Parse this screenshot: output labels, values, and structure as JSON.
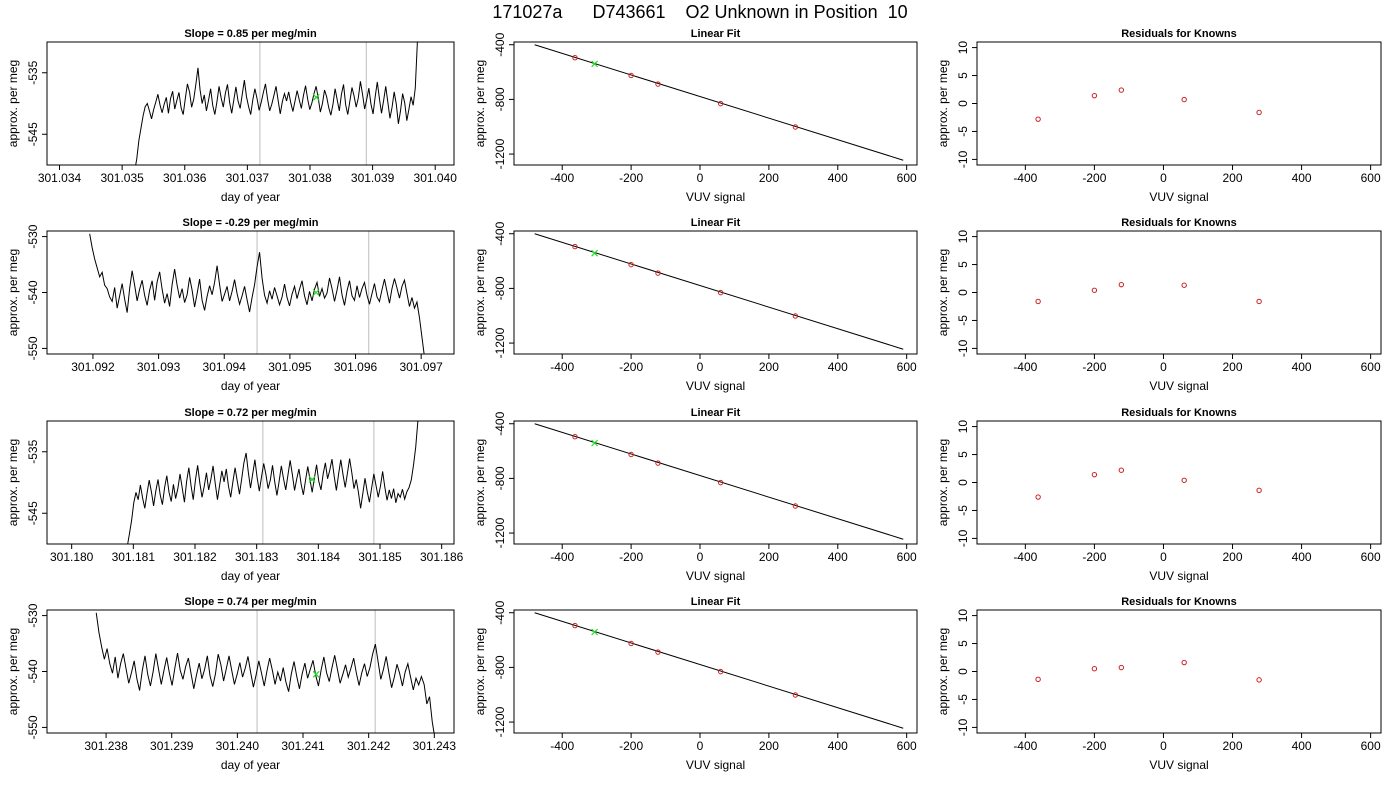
{
  "title": "171027a      D743661    O2 Unknown in Position  10",
  "chart_data": [
    {
      "type": "line",
      "title": "Slope =  0.85  per meg/min",
      "xlabel": "day of year",
      "ylabel": "approx. per meg",
      "xlim": [
        301.0338,
        301.0403
      ],
      "ylim": [
        -550,
        -530
      ],
      "xticks": [
        "301.034",
        "301.035",
        "301.036",
        "301.037",
        "301.038",
        "301.039",
        "301.040"
      ],
      "yticks": [
        "-535",
        "-545"
      ],
      "ytick_values": [
        -535,
        -545
      ],
      "vlines": [
        301.0372,
        301.0389
      ],
      "marker": [
        301.0381,
        -539
      ],
      "series_x_start": 301.0352,
      "series_x_end": 301.03985,
      "series_values": [
        -551,
        -549,
        -546,
        -544,
        -542,
        -540.5,
        -540,
        -541.2,
        -542.5,
        -541,
        -539.8,
        -538.5,
        -540.2,
        -541.5,
        -540.1,
        -539,
        -541.6,
        -539.2,
        -538,
        -540.9,
        -539.5,
        -538.2,
        -540.7,
        -541.8,
        -539.2,
        -536.8,
        -538.1,
        -540.6,
        -539.3,
        -536.9,
        -534.2,
        -537.8,
        -540,
        -538.6,
        -541.2,
        -539.5,
        -537.6,
        -540.3,
        -541.8,
        -539.7,
        -537.2,
        -539.1,
        -540.6,
        -538.3,
        -536.9,
        -539.8,
        -541.6,
        -539.4,
        -537.3,
        -539.6,
        -540.8,
        -538.5,
        -536.2,
        -538.9,
        -540.5,
        -541.8,
        -539.4,
        -537.6,
        -539.2,
        -541.1,
        -539.8,
        -538.2,
        -536.8,
        -539.3,
        -541.2,
        -540.1,
        -538.7,
        -537.2,
        -539.5,
        -541.7,
        -539.7,
        -538.4,
        -539.6,
        -538.1,
        -539.9,
        -541.3,
        -539.6,
        -537.9,
        -539.4,
        -540.8,
        -538.7,
        -537.1,
        -539.3,
        -541,
        -539.9,
        -538.4,
        -537.2,
        -539.1,
        -541.4,
        -540,
        -537.8,
        -538.9,
        -540.7,
        -541.9,
        -540.1,
        -537.6,
        -539.4,
        -541.2,
        -538.5,
        -536.9,
        -540.2,
        -541.8,
        -539.6,
        -537.4,
        -538.8,
        -540.6,
        -539.1,
        -536.4,
        -538.5,
        -540.9,
        -539.3,
        -537.5,
        -540.1,
        -541.7,
        -538.9,
        -536.5,
        -539.2,
        -541.6,
        -539.5,
        -537.2,
        -539.8,
        -542.4,
        -540.6,
        -538.1,
        -540.1,
        -543.3,
        -541.2,
        -538.4,
        -539.9,
        -542.8,
        -540.9,
        -538.9,
        -540.3,
        -537.5,
        -530,
        -522,
        -515,
        -510,
        -506
      ]
    },
    {
      "type": "scatter",
      "title": "Linear Fit",
      "xlabel": "VUV signal",
      "ylabel": "approx. per meg",
      "xlim": [
        -540,
        630
      ],
      "ylim": [
        -1280,
        -380
      ],
      "xticks": [
        "-400",
        "-200",
        "0",
        "200",
        "400",
        "600"
      ],
      "xtick_values": [
        -400,
        -200,
        0,
        200,
        400,
        600
      ],
      "yticks": [
        "-400",
        "-800",
        "-1200"
      ],
      "ytick_values": [
        -400,
        -800,
        -1200
      ],
      "line": {
        "x": [
          -480,
          590
        ],
        "y": [
          -400,
          -1245
        ]
      },
      "knowns": {
        "x": [
          -363,
          -200,
          -122,
          60,
          277
        ],
        "y": [
          -495,
          -625,
          -688,
          -831,
          -1002
        ]
      },
      "unknown": {
        "x": [
          -306
        ],
        "y": [
          -540
        ]
      }
    },
    {
      "type": "scatter",
      "title": "Residuals for Knowns",
      "xlabel": "VUV signal",
      "ylabel": "approx. per meg",
      "xlim": [
        -540,
        630
      ],
      "ylim": [
        -11,
        11
      ],
      "xticks": [
        "-400",
        "-200",
        "0",
        "200",
        "400",
        "600"
      ],
      "xtick_values": [
        -400,
        -200,
        0,
        200,
        400,
        600
      ],
      "yticks": [
        "-10",
        "-5",
        "0",
        "5",
        "10"
      ],
      "ytick_values": [
        -10,
        -5,
        0,
        5,
        10
      ],
      "x": [
        -363,
        -200,
        -122,
        60,
        277
      ],
      "y": [
        -2.8,
        1.4,
        2.4,
        0.7,
        -1.6
      ]
    },
    {
      "type": "line",
      "title": "Slope =  -0.29  per meg/min",
      "xlabel": "day of year",
      "ylabel": "approx. per meg",
      "xlim": [
        301.0913,
        301.0975
      ],
      "ylim": [
        -551,
        -529
      ],
      "xticks": [
        "301.092",
        "301.093",
        "301.094",
        "301.095",
        "301.096",
        "301.097"
      ],
      "yticks": [
        "-530",
        "-540",
        "-550"
      ],
      "ytick_values": [
        -530,
        -540,
        -550
      ],
      "vlines": [
        301.0945,
        301.0962
      ],
      "marker": [
        301.0954,
        -540
      ],
      "series_x_start": 301.09195,
      "series_x_end": 301.09705,
      "series_values": [
        -529.5,
        -532,
        -534,
        -535.6,
        -537.2,
        -536.4,
        -538.7,
        -539.3,
        -540.8,
        -541.6,
        -539.1,
        -542.8,
        -540.6,
        -538.4,
        -541.2,
        -543.6,
        -539.3,
        -536.1,
        -538.7,
        -541.5,
        -539.4,
        -537.8,
        -540.5,
        -542.3,
        -539.6,
        -537.9,
        -541.4,
        -538.1,
        -536.3,
        -539.4,
        -541.9,
        -540.2,
        -542.5,
        -538.6,
        -535.8,
        -538.7,
        -541,
        -539.3,
        -541.8,
        -540.4,
        -537.3,
        -539.6,
        -542.6,
        -540.2,
        -537.6,
        -541.4,
        -543.2,
        -540.7,
        -538.8,
        -540.4,
        -538.2,
        -535.2,
        -538.6,
        -541.6,
        -540.3,
        -538.9,
        -541.5,
        -539.8,
        -537.7,
        -540.2,
        -542.1,
        -540.6,
        -538.9,
        -541.3,
        -543.5,
        -540.9,
        -538.6,
        -535.4,
        -532.8,
        -537.4,
        -540.5,
        -541.9,
        -539.7,
        -541.2,
        -539.1,
        -540.6,
        -542.2,
        -540.8,
        -538.5,
        -540.9,
        -542.4,
        -540.3,
        -538.9,
        -541.1,
        -539.4,
        -537.9,
        -540.6,
        -542.2,
        -539.8,
        -541.5,
        -539.4,
        -538.2,
        -540.7,
        -539.3,
        -541,
        -540.1,
        -537.4,
        -539.3,
        -541.6,
        -539.6,
        -537.2,
        -540.4,
        -542.3,
        -539.7,
        -537.9,
        -540.6,
        -541.4,
        -538.8,
        -540.9,
        -539.3,
        -538.2,
        -540.5,
        -542.1,
        -540.2,
        -538.4,
        -540.8,
        -541.6,
        -539.5,
        -537.6,
        -539.8,
        -541.9,
        -539.3,
        -537.5,
        -539.2,
        -541,
        -538.9,
        -537.8,
        -540.2,
        -542.5,
        -540.9,
        -542.8,
        -541.7,
        -544.5,
        -548,
        -551.5
      ]
    },
    {
      "type": "scatter",
      "title": "Linear Fit",
      "xlabel": "VUV signal",
      "ylabel": "approx. per meg",
      "xlim": [
        -540,
        630
      ],
      "ylim": [
        -1280,
        -380
      ],
      "xticks": [
        "-400",
        "-200",
        "0",
        "200",
        "400",
        "600"
      ],
      "xtick_values": [
        -400,
        -200,
        0,
        200,
        400,
        600
      ],
      "yticks": [
        "-400",
        "-800",
        "-1200"
      ],
      "ytick_values": [
        -400,
        -800,
        -1200
      ],
      "line": {
        "x": [
          -480,
          590
        ],
        "y": [
          -400,
          -1245
        ]
      },
      "knowns": {
        "x": [
          -363,
          -200,
          -122,
          60,
          277
        ],
        "y": [
          -494,
          -626,
          -688,
          -831,
          -1002
        ]
      },
      "unknown": {
        "x": [
          -306
        ],
        "y": [
          -542
        ]
      }
    },
    {
      "type": "scatter",
      "title": "Residuals for Knowns",
      "xlabel": "VUV signal",
      "ylabel": "approx. per meg",
      "xlim": [
        -540,
        630
      ],
      "ylim": [
        -11,
        11
      ],
      "xticks": [
        "-400",
        "-200",
        "0",
        "200",
        "400",
        "600"
      ],
      "xtick_values": [
        -400,
        -200,
        0,
        200,
        400,
        600
      ],
      "yticks": [
        "-10",
        "-5",
        "0",
        "5",
        "10"
      ],
      "ytick_values": [
        -10,
        -5,
        0,
        5,
        10
      ],
      "x": [
        -363,
        -200,
        -122,
        60,
        277
      ],
      "y": [
        -1.6,
        0.4,
        1.4,
        1.3,
        -1.6
      ]
    },
    {
      "type": "line",
      "title": "Slope =  0.72  per meg/min",
      "xlabel": "day of year",
      "ylabel": "approx. per meg",
      "xlim": [
        301.1796,
        301.1862
      ],
      "ylim": [
        -550,
        -530
      ],
      "xticks": [
        "301.180",
        "301.181",
        "301.182",
        "301.183",
        "301.184",
        "301.185",
        "301.186"
      ],
      "yticks": [
        "-535",
        "-545"
      ],
      "ytick_values": [
        -535,
        -545
      ],
      "vlines": [
        301.1831,
        301.1849
      ],
      "marker": [
        301.1839,
        -539.5
      ],
      "series_x_start": 301.1809,
      "series_x_end": 301.18565,
      "series_values": [
        -550.5,
        -548.4,
        -546.2,
        -543.3,
        -541.6,
        -542.8,
        -540.4,
        -542.5,
        -544.2,
        -541.8,
        -539.6,
        -541.5,
        -543.8,
        -541.4,
        -539.5,
        -542,
        -543.6,
        -540.8,
        -538.9,
        -541.6,
        -543.1,
        -540.3,
        -542.6,
        -541,
        -538.6,
        -540.9,
        -543.2,
        -539.8,
        -537.6,
        -540.5,
        -542.8,
        -539.6,
        -537.2,
        -540.1,
        -542.4,
        -540.6,
        -538.4,
        -541.2,
        -539.5,
        -537.3,
        -540.2,
        -542.8,
        -540.4,
        -538.1,
        -539.9,
        -537.8,
        -540.6,
        -542.4,
        -539.9,
        -537.6,
        -539.8,
        -541.9,
        -539.4,
        -536.8,
        -535.2,
        -538.3,
        -540.9,
        -538.6,
        -536.3,
        -539.2,
        -541.4,
        -539.1,
        -536.9,
        -538.7,
        -541,
        -539.6,
        -537.2,
        -539.9,
        -542.1,
        -539.8,
        -537.3,
        -539.4,
        -541.2,
        -538.8,
        -536.4,
        -538.7,
        -541.3,
        -539.4,
        -537.8,
        -540.3,
        -542,
        -539.6,
        -537.4,
        -539.5,
        -541.6,
        -539.3,
        -537.1,
        -539.8,
        -541.2,
        -538.6,
        -536.8,
        -539.4,
        -538,
        -536.2,
        -539,
        -541.3,
        -538.6,
        -536.3,
        -538.7,
        -540.8,
        -538.5,
        -536.1,
        -538.4,
        -541,
        -539.5,
        -541.6,
        -544.2,
        -541.8,
        -539.3,
        -541.5,
        -543.2,
        -540.9,
        -538.6,
        -540.5,
        -542.4,
        -540.6,
        -538.2,
        -540.8,
        -542.9,
        -541.2,
        -542.6,
        -541,
        -543.3,
        -541.8,
        -542.4,
        -541.1,
        -542.7,
        -541.5,
        -540.8,
        -539.6,
        -537.2,
        -534.3,
        -530,
        -526
      ]
    },
    {
      "type": "scatter",
      "title": "Linear Fit",
      "xlabel": "VUV signal",
      "ylabel": "approx. per meg",
      "xlim": [
        -540,
        630
      ],
      "ylim": [
        -1280,
        -380
      ],
      "xticks": [
        "-400",
        "-200",
        "0",
        "200",
        "400",
        "600"
      ],
      "xtick_values": [
        -400,
        -200,
        0,
        200,
        400,
        600
      ],
      "yticks": [
        "-400",
        "-800",
        "-1200"
      ],
      "ytick_values": [
        -400,
        -800,
        -1200
      ],
      "line": {
        "x": [
          -480,
          590
        ],
        "y": [
          -400,
          -1245
        ]
      },
      "knowns": {
        "x": [
          -363,
          -200,
          -122,
          60,
          277
        ],
        "y": [
          -495,
          -625,
          -688,
          -831,
          -1002
        ]
      },
      "unknown": {
        "x": [
          -306
        ],
        "y": [
          -541
        ]
      }
    },
    {
      "type": "scatter",
      "title": "Residuals for Knowns",
      "xlabel": "VUV signal",
      "ylabel": "approx. per meg",
      "xlim": [
        -540,
        630
      ],
      "ylim": [
        -11,
        11
      ],
      "xticks": [
        "-400",
        "-200",
        "0",
        "200",
        "400",
        "600"
      ],
      "xtick_values": [
        -400,
        -200,
        0,
        200,
        400,
        600
      ],
      "yticks": [
        "-10",
        "-5",
        "0",
        "5",
        "10"
      ],
      "ytick_values": [
        -10,
        -5,
        0,
        5,
        10
      ],
      "x": [
        -363,
        -200,
        -122,
        60,
        277
      ],
      "y": [
        -2.6,
        1.4,
        2.2,
        0.4,
        -1.4
      ]
    },
    {
      "type": "line",
      "title": "Slope =  0.74  per meg/min",
      "xlabel": "day of year",
      "ylabel": "approx. per meg",
      "xlim": [
        301.2371,
        301.2433
      ],
      "ylim": [
        -551,
        -529
      ],
      "xticks": [
        "301.238",
        "301.239",
        "301.240",
        "301.241",
        "301.242",
        "301.243"
      ],
      "yticks": [
        "-530",
        "-540",
        "-550"
      ],
      "ytick_values": [
        -530,
        -540,
        -550
      ],
      "vlines": [
        301.2403,
        301.2421
      ],
      "marker": [
        301.2412,
        -540.5
      ],
      "series_x_start": 301.23785,
      "series_x_end": 301.24301,
      "series_values": [
        -529.5,
        -533,
        -535.6,
        -537.8,
        -535.9,
        -538.6,
        -540.3,
        -537.4,
        -541.2,
        -538.6,
        -536.8,
        -539.5,
        -542.1,
        -540.2,
        -538.1,
        -541.3,
        -543.4,
        -539.8,
        -537.2,
        -540.5,
        -542.6,
        -540,
        -536.8,
        -539.6,
        -542.3,
        -539.8,
        -537.5,
        -540.3,
        -542.5,
        -539.4,
        -536.7,
        -539.8,
        -541.4,
        -539.1,
        -537.6,
        -540.4,
        -543.1,
        -540.6,
        -538.5,
        -541.3,
        -539.6,
        -537.2,
        -540.8,
        -542.7,
        -540.4,
        -536.9,
        -538.8,
        -541.7,
        -539.5,
        -537.2,
        -539.8,
        -542.3,
        -540.5,
        -538.4,
        -541,
        -539.4,
        -537.3,
        -540.2,
        -542.8,
        -540.6,
        -538.1,
        -540.3,
        -542.6,
        -539.9,
        -537.6,
        -539.8,
        -542.3,
        -540.1,
        -541.7,
        -539.3,
        -541.9,
        -543.6,
        -540.4,
        -538.2,
        -540.9,
        -543.1,
        -540.4,
        -538.5,
        -541.2,
        -539.6,
        -538,
        -540.7,
        -542.6,
        -539.7,
        -537.4,
        -540.2,
        -541.8,
        -539.3,
        -537.1,
        -539.6,
        -542.1,
        -540.5,
        -538.8,
        -541,
        -539.4,
        -537.6,
        -540.3,
        -542.5,
        -540.2,
        -538.6,
        -540.9,
        -539.3,
        -536.9,
        -535.1,
        -538.2,
        -541.4,
        -539.6,
        -537.3,
        -540.2,
        -542.9,
        -541,
        -538.7,
        -540.4,
        -542.6,
        -540.1,
        -538.6,
        -541,
        -543.3,
        -541.2,
        -542.4,
        -540.9,
        -542.3,
        -545.8,
        -544.5,
        -549,
        -552
      ]
    },
    {
      "type": "scatter",
      "title": "Linear Fit",
      "xlabel": "VUV signal",
      "ylabel": "approx. per meg",
      "xlim": [
        -540,
        630
      ],
      "ylim": [
        -1280,
        -380
      ],
      "xticks": [
        "-400",
        "-200",
        "0",
        "200",
        "400",
        "600"
      ],
      "xtick_values": [
        -400,
        -200,
        0,
        200,
        400,
        600
      ],
      "yticks": [
        "-400",
        "-800",
        "-1200"
      ],
      "ytick_values": [
        -400,
        -800,
        -1200
      ],
      "line": {
        "x": [
          -480,
          590
        ],
        "y": [
          -400,
          -1245
        ]
      },
      "knowns": {
        "x": [
          -363,
          -200,
          -122,
          60,
          277
        ],
        "y": [
          -494,
          -625,
          -688,
          -831,
          -1002
        ]
      },
      "unknown": {
        "x": [
          -306
        ],
        "y": [
          -541
        ]
      }
    },
    {
      "type": "scatter",
      "title": "Residuals for Knowns",
      "xlabel": "VUV signal",
      "ylabel": "approx. per meg",
      "xlim": [
        -540,
        630
      ],
      "ylim": [
        -11,
        11
      ],
      "xticks": [
        "-400",
        "-200",
        "0",
        "200",
        "400",
        "600"
      ],
      "xtick_values": [
        -400,
        -200,
        0,
        200,
        400,
        600
      ],
      "yticks": [
        "-10",
        "-5",
        "0",
        "5",
        "10"
      ],
      "ytick_values": [
        -10,
        -5,
        0,
        5,
        10
      ],
      "x": [
        -363,
        -200,
        -122,
        60,
        277
      ],
      "y": [
        -1.4,
        0.5,
        0.7,
        1.6,
        -1.5
      ]
    }
  ]
}
